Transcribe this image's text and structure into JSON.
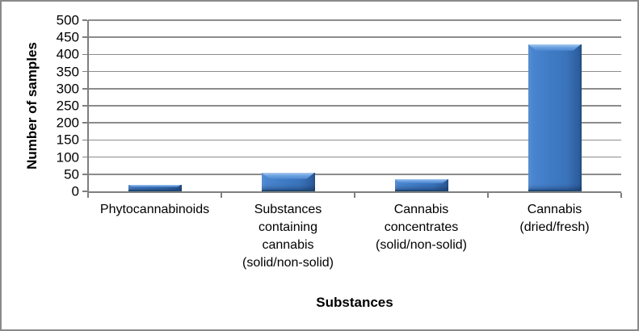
{
  "chart": {
    "y_axis_title": "Number of samples",
    "x_axis_title": "Substances"
  },
  "chart_data": {
    "type": "bar",
    "title": "",
    "xlabel": "Substances",
    "ylabel": "Number of samples",
    "categories": [
      "Phytocannabinoids",
      "Substances containing cannabis (solid/non-solid)",
      "Cannabis concentrates (solid/non-solid)",
      "Cannabis (dried/fresh)"
    ],
    "categories_lines": [
      [
        "Phytocannabinoids"
      ],
      [
        "Substances",
        "containing",
        "cannabis",
        "(solid/non-solid)"
      ],
      [
        "Cannabis",
        "concentrates",
        "(solid/non-solid)"
      ],
      [
        "Cannabis",
        "(dried/fresh)"
      ]
    ],
    "values": [
      20,
      55,
      35,
      430
    ],
    "ylim": [
      0,
      500
    ],
    "ytick_step": 50,
    "ytick_labels": [
      "0",
      "50",
      "100",
      "150",
      "200",
      "250",
      "300",
      "350",
      "400",
      "450",
      "500"
    ],
    "grid": true,
    "legend": false,
    "bar_color": "#3e7ac4",
    "bar_edge_color": "#1d4976",
    "grid_color": "#8c8c8c",
    "axis_color": "#7f7f7f",
    "text_color": "#000000",
    "plot_background": "#ffffff",
    "frame_border_color": "#8a8a8a"
  }
}
